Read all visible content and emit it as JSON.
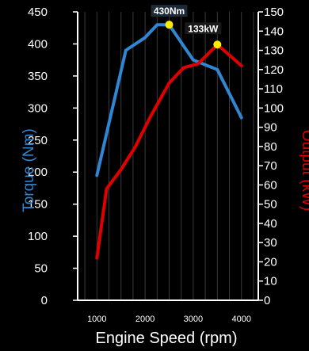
{
  "chart_data": {
    "type": "line",
    "x": [
      1000,
      1600,
      2000,
      2250,
      2500,
      3000,
      3500,
      4000
    ],
    "xlabel": "Engine Speed (rpm)",
    "x_ticks": [
      "1000",
      "2000",
      "3000",
      "4000"
    ],
    "xlim": [
      600,
      4350
    ],
    "y_left": {
      "label": "Torque (Nm)",
      "ylim": [
        0,
        450
      ],
      "ticks": [
        "0",
        "50",
        "100",
        "150",
        "200",
        "250",
        "300",
        "350",
        "400",
        "450"
      ]
    },
    "y_right": {
      "label": "Output (kW)",
      "ylim": [
        0,
        150
      ],
      "ticks": [
        "0",
        "10",
        "20",
        "30",
        "40",
        "50",
        "60",
        "70",
        "80",
        "90",
        "100",
        "110",
        "120",
        "130",
        "140",
        "150"
      ]
    },
    "series": [
      {
        "axis": "left",
        "color": "#2f86d2",
        "x": [
          1000,
          1600,
          2000,
          2250,
          2500,
          3000,
          3500,
          4000
        ],
        "values": [
          195,
          390,
          410,
          430,
          430,
          375,
          360,
          285
        ]
      },
      {
        "axis": "right",
        "color": "#e00000",
        "x": [
          1000,
          1200,
          1500,
          1800,
          2100,
          2500,
          2800,
          3100,
          3500,
          4000
        ],
        "values": [
          22,
          58,
          68,
          80,
          95,
          113,
          121,
          123,
          133,
          122
        ]
      }
    ],
    "annotations": [
      {
        "text": "430Nm",
        "series": 0,
        "x": 2500,
        "y": 430,
        "marker_color": "#ffea00",
        "box_color": "#1c2a38",
        "text_color": "#5aa6ee"
      },
      {
        "text": "133kW",
        "series": 1,
        "x": 3500,
        "y": 133,
        "marker_color": "#ffea00",
        "box_color": "#1a1a1a",
        "text_color": "#e00000"
      }
    ],
    "grid": "vertical-only",
    "colors": {
      "background": "#000000",
      "grid": "#3a3a3a",
      "axis": "#ffffff",
      "torque": "#2f86d2",
      "output": "#e00000"
    }
  }
}
